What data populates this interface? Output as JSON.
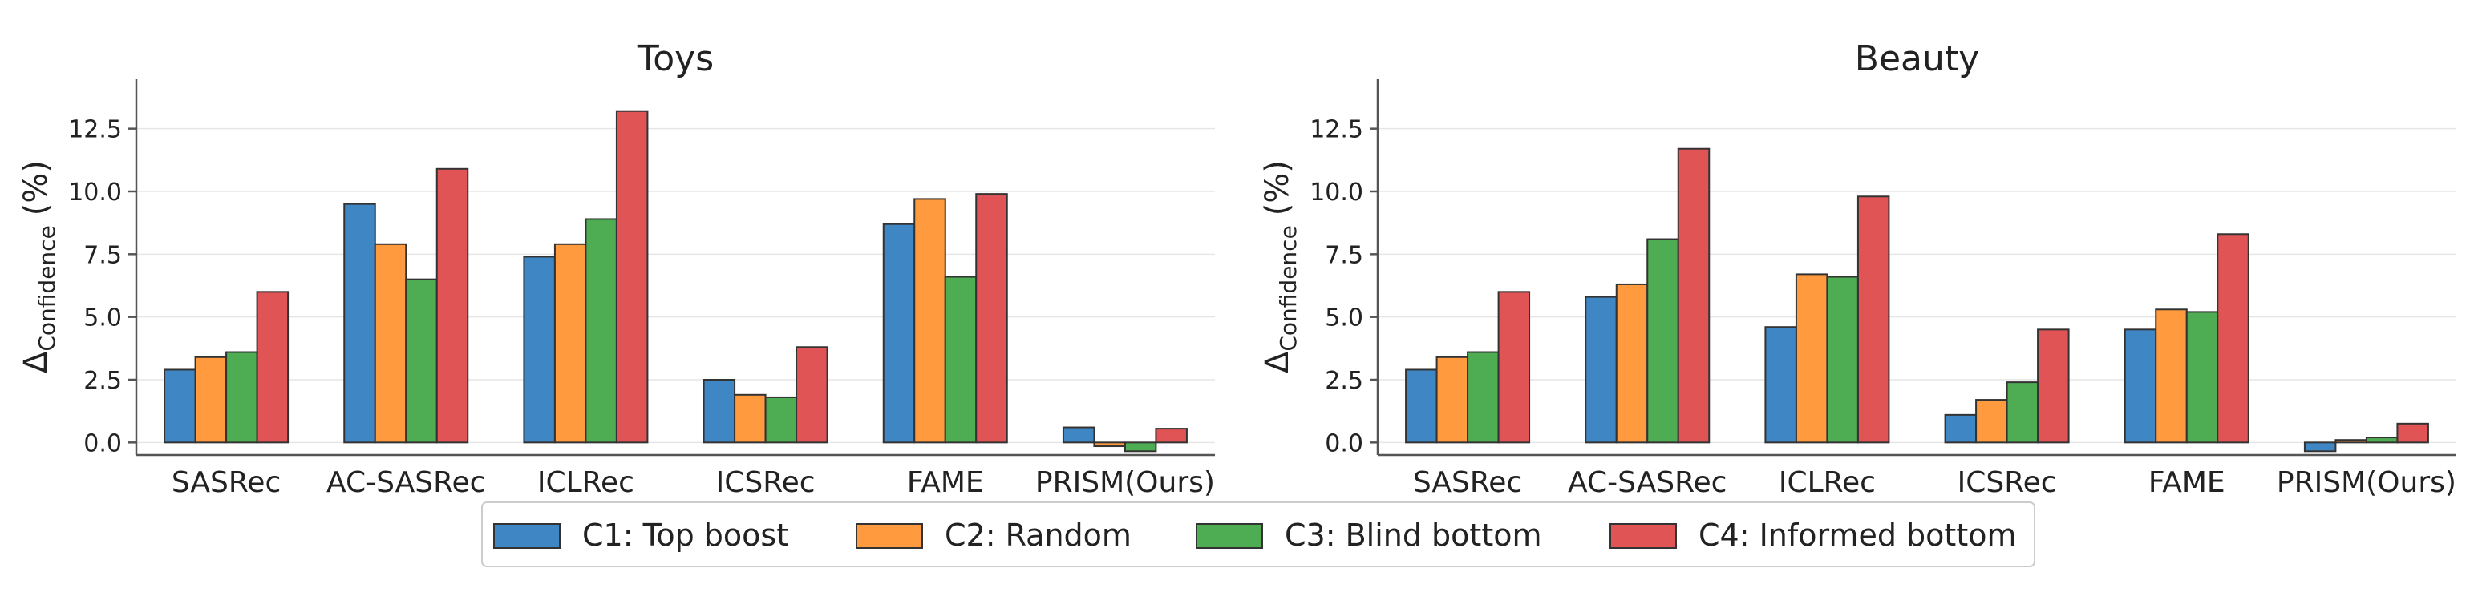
{
  "chart_data": [
    {
      "type": "bar",
      "title": "Toys",
      "ylabel": "Δ",
      "ylabel_sub": "Confidence",
      "ylabel_unit": "(%)",
      "categories": [
        "SASRec",
        "AC-SASRec",
        "ICLRec",
        "ICSRec",
        "FAME",
        "PRISM(Ours)"
      ],
      "ylim": [
        -0.5,
        14.5
      ],
      "yticks": [
        "0.0",
        "2.5",
        "5.0",
        "7.5",
        "10.0",
        "12.5"
      ],
      "series": [
        {
          "name": "C1: Top boost",
          "values": [
            2.9,
            9.5,
            7.4,
            2.5,
            8.7,
            0.6
          ]
        },
        {
          "name": "C2: Random",
          "values": [
            3.4,
            7.9,
            7.9,
            1.9,
            9.7,
            -0.15
          ]
        },
        {
          "name": "C3: Blind bottom",
          "values": [
            3.6,
            6.5,
            8.9,
            1.8,
            6.6,
            -0.35
          ]
        },
        {
          "name": "C4: Informed bottom",
          "values": [
            6.0,
            10.9,
            13.2,
            3.8,
            9.9,
            0.55
          ]
        }
      ],
      "grid": true
    },
    {
      "type": "bar",
      "title": "Beauty",
      "ylabel": "Δ",
      "ylabel_sub": "Confidence",
      "ylabel_unit": "(%)",
      "categories": [
        "SASRec",
        "AC-SASRec",
        "ICLRec",
        "ICSRec",
        "FAME",
        "PRISM(Ours)"
      ],
      "ylim": [
        -0.5,
        14.5
      ],
      "yticks": [
        "0.0",
        "2.5",
        "5.0",
        "7.5",
        "10.0",
        "12.5"
      ],
      "series": [
        {
          "name": "C1: Top boost",
          "values": [
            2.9,
            5.8,
            4.6,
            1.1,
            4.5,
            -0.35
          ]
        },
        {
          "name": "C2: Random",
          "values": [
            3.4,
            6.3,
            6.7,
            1.7,
            5.3,
            0.1
          ]
        },
        {
          "name": "C3: Blind bottom",
          "values": [
            3.6,
            8.1,
            6.6,
            2.4,
            5.2,
            0.2
          ]
        },
        {
          "name": "C4: Informed bottom",
          "values": [
            6.0,
            11.7,
            9.8,
            4.5,
            8.3,
            0.75
          ]
        }
      ],
      "grid": true
    }
  ],
  "legend": {
    "placement": "bottom-center",
    "items": [
      {
        "label": "C1: Top boost",
        "color": "#3f86c4"
      },
      {
        "label": "C2: Random",
        "color": "#ff9a3e"
      },
      {
        "label": "C3: Blind bottom",
        "color": "#4eac52"
      },
      {
        "label": "C4: Informed bottom",
        "color": "#e15455"
      }
    ]
  }
}
